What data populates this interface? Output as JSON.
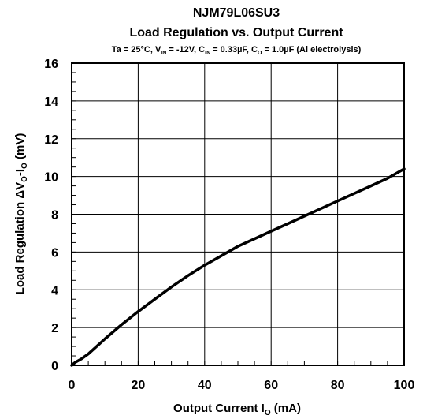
{
  "chart_data": {
    "type": "line",
    "title": "NJM79L06SU3",
    "subtitle": "Load Regulation vs. Output Current",
    "conditions": {
      "ta": "Ta = 25°C, V",
      "vin_sub": "IN",
      "vin_val": " = -12V, C",
      "cin_sub": "IN",
      "cin_val": " = 0.33µF, C",
      "co_sub": "O",
      "co_val": " = 1.0µF (Al electrolysis)"
    },
    "xlabel": {
      "main": "Output Current I",
      "sub": "O",
      "unit": " (mA)"
    },
    "ylabel": {
      "p1": "Load Regulation ΔV",
      "sub1": "O",
      "p2": "-I",
      "sub2": "O",
      "p3": " (mV)"
    },
    "xlim": [
      0,
      100
    ],
    "ylim": [
      0,
      16
    ],
    "xticks": [
      0,
      20,
      40,
      60,
      80,
      100
    ],
    "yticks": [
      0,
      2,
      4,
      6,
      8,
      10,
      12,
      14,
      16
    ],
    "grid": true,
    "series": [
      {
        "color": "#000000",
        "x": [
          0,
          1,
          3,
          5,
          10,
          15,
          20,
          25,
          30,
          35,
          40,
          45,
          50,
          55,
          60,
          65,
          70,
          75,
          80,
          85,
          90,
          95,
          100
        ],
        "y": [
          0,
          0.15,
          0.35,
          0.6,
          1.4,
          2.15,
          2.85,
          3.5,
          4.15,
          4.75,
          5.3,
          5.8,
          6.3,
          6.7,
          7.1,
          7.5,
          7.9,
          8.3,
          8.7,
          9.1,
          9.5,
          9.9,
          10.4
        ]
      }
    ]
  }
}
